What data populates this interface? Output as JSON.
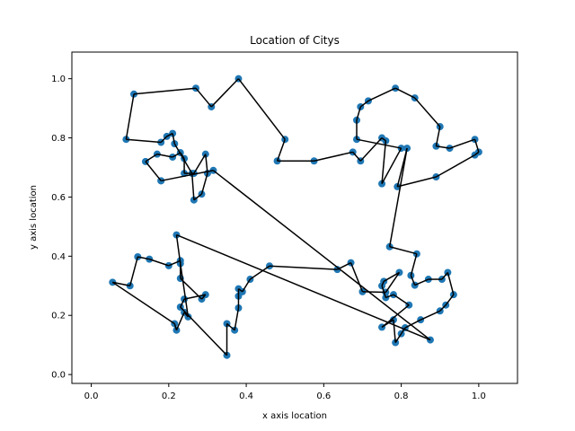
{
  "chart_data": {
    "type": "scatter",
    "title": "Location of Citys",
    "xlabel": "x axis location",
    "ylabel": "y axis location",
    "xlim": [
      -0.05,
      1.1
    ],
    "ylim": [
      -0.03,
      1.09
    ],
    "xticks": [
      "0.0",
      "0.2",
      "0.4",
      "0.6",
      "0.8",
      "1.0"
    ],
    "yticks": [
      "0.0",
      "0.2",
      "0.4",
      "0.6",
      "0.8",
      "1.0"
    ],
    "grid": false,
    "marker_color": "#1f77b4",
    "line_color": "#000000",
    "series": [
      {
        "kind": "route",
        "points": [
          [
            0.18,
            0.655
          ],
          [
            0.14,
            0.72
          ],
          [
            0.17,
            0.745
          ],
          [
            0.21,
            0.735
          ],
          [
            0.23,
            0.75
          ],
          [
            0.24,
            0.73
          ],
          [
            0.24,
            0.68
          ],
          [
            0.265,
            0.68
          ],
          [
            0.295,
            0.745
          ],
          [
            0.3,
            0.68
          ],
          [
            0.285,
            0.61
          ],
          [
            0.265,
            0.59
          ],
          [
            0.26,
            0.68
          ],
          [
            0.215,
            0.78
          ],
          [
            0.21,
            0.815
          ],
          [
            0.195,
            0.805
          ],
          [
            0.18,
            0.785
          ],
          [
            0.09,
            0.795
          ],
          [
            0.11,
            0.948
          ],
          [
            0.27,
            0.968
          ],
          [
            0.31,
            0.905
          ],
          [
            0.38,
            1.0
          ],
          [
            0.5,
            0.795
          ],
          [
            0.48,
            0.722
          ],
          [
            0.575,
            0.722
          ],
          [
            0.675,
            0.752
          ],
          [
            0.695,
            0.722
          ],
          [
            0.75,
            0.8
          ],
          [
            0.76,
            0.79
          ],
          [
            0.75,
            0.645
          ],
          [
            0.8,
            0.765
          ],
          [
            0.685,
            0.795
          ],
          [
            0.685,
            0.86
          ],
          [
            0.695,
            0.905
          ],
          [
            0.715,
            0.925
          ],
          [
            0.785,
            0.968
          ],
          [
            0.835,
            0.935
          ],
          [
            0.9,
            0.838
          ],
          [
            0.89,
            0.772
          ],
          [
            0.925,
            0.765
          ],
          [
            0.99,
            0.795
          ],
          [
            1.0,
            0.752
          ],
          [
            0.99,
            0.742
          ],
          [
            0.89,
            0.668
          ],
          [
            0.79,
            0.635
          ],
          [
            0.815,
            0.765
          ],
          [
            0.77,
            0.432
          ],
          [
            0.84,
            0.408
          ],
          [
            0.825,
            0.335
          ],
          [
            0.835,
            0.302
          ],
          [
            0.87,
            0.322
          ],
          [
            0.905,
            0.322
          ],
          [
            0.92,
            0.345
          ],
          [
            0.935,
            0.27
          ],
          [
            0.915,
            0.235
          ],
          [
            0.9,
            0.215
          ],
          [
            0.85,
            0.185
          ],
          [
            0.81,
            0.158
          ],
          [
            0.8,
            0.138
          ],
          [
            0.785,
            0.108
          ],
          [
            0.78,
            0.185
          ],
          [
            0.75,
            0.16
          ],
          [
            0.82,
            0.235
          ],
          [
            0.78,
            0.27
          ],
          [
            0.76,
            0.26
          ],
          [
            0.75,
            0.3
          ],
          [
            0.755,
            0.315
          ],
          [
            0.795,
            0.345
          ],
          [
            0.76,
            0.278
          ],
          [
            0.7,
            0.28
          ],
          [
            0.67,
            0.378
          ],
          [
            0.635,
            0.355
          ],
          [
            0.46,
            0.367
          ],
          [
            0.41,
            0.322
          ],
          [
            0.39,
            0.28
          ],
          [
            0.38,
            0.29
          ],
          [
            0.38,
            0.265
          ],
          [
            0.38,
            0.225
          ],
          [
            0.37,
            0.15
          ],
          [
            0.35,
            0.172
          ],
          [
            0.35,
            0.065
          ],
          [
            0.23,
            0.228
          ],
          [
            0.24,
            0.255
          ],
          [
            0.295,
            0.27
          ],
          [
            0.285,
            0.255
          ],
          [
            0.23,
            0.325
          ],
          [
            0.23,
            0.385
          ],
          [
            0.2,
            0.368
          ],
          [
            0.15,
            0.39
          ],
          [
            0.12,
            0.398
          ],
          [
            0.1,
            0.3
          ],
          [
            0.055,
            0.312
          ],
          [
            0.215,
            0.172
          ],
          [
            0.22,
            0.15
          ],
          [
            0.24,
            0.21
          ],
          [
            0.25,
            0.195
          ],
          [
            0.23,
            0.375
          ],
          [
            0.22,
            0.472
          ],
          [
            0.875,
            0.117
          ],
          [
            0.315,
            0.69
          ],
          [
            0.18,
            0.655
          ]
        ]
      }
    ]
  }
}
